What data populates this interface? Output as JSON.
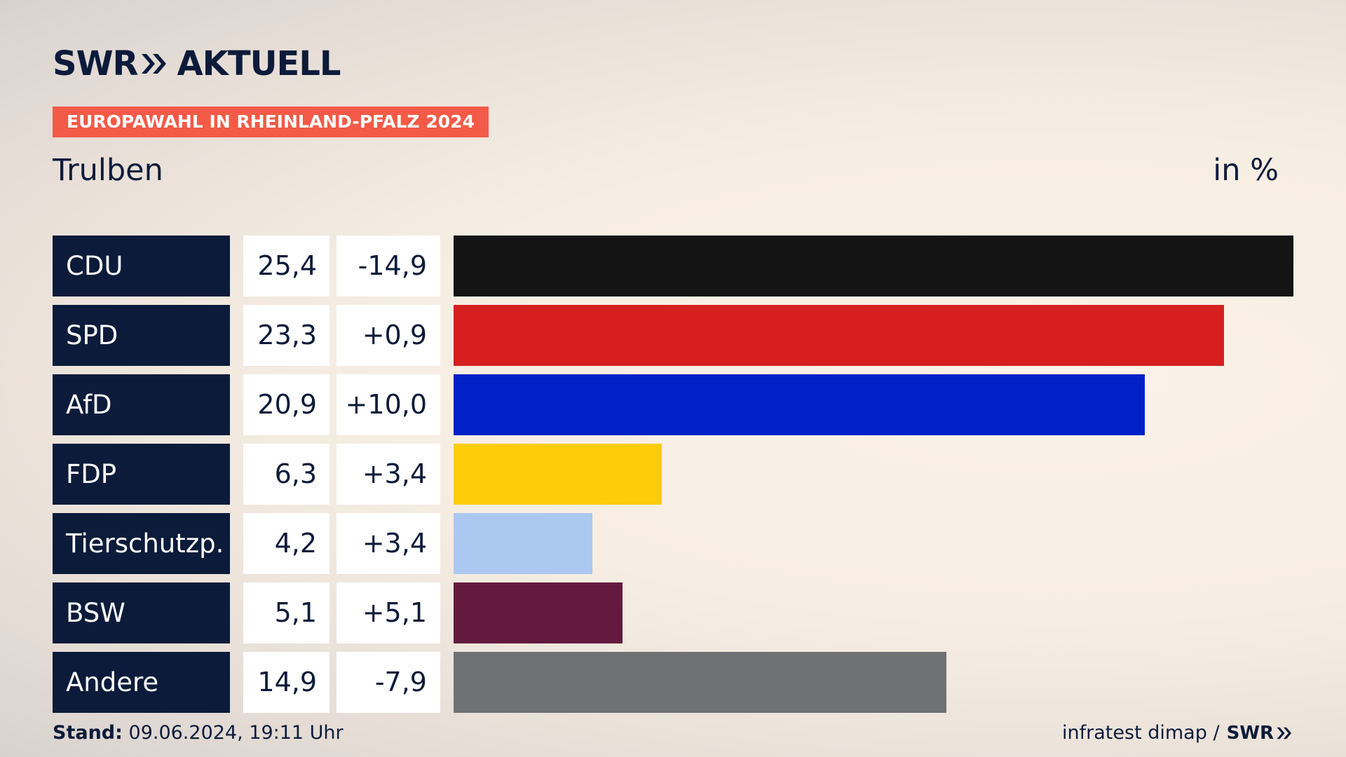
{
  "brand": {
    "logo_left": "SWR",
    "logo_right": "AKTUELL",
    "footer_logo": "SWR"
  },
  "badge": "EUROPAWAHL IN RHEINLAND-PFALZ 2024",
  "region": "Trulben",
  "unit": "in %",
  "footer": {
    "stand_label": "Stand:",
    "stand_value": "09.06.2024, 19:11 Uhr",
    "source": "infratest dimap /"
  },
  "colors": {
    "navy": "#0c1b3a",
    "badge": "#f35a47"
  },
  "chart_data": {
    "type": "bar",
    "orientation": "horizontal",
    "title": "Trulben",
    "unit": "in %",
    "xlim": [
      0,
      25.4
    ],
    "rows": [
      {
        "party": "CDU",
        "value": 25.4,
        "value_label": "25,4",
        "change_label": "-14,9",
        "color": "#141414"
      },
      {
        "party": "SPD",
        "value": 23.3,
        "value_label": "23,3",
        "change_label": "+0,9",
        "color": "#d71f1f"
      },
      {
        "party": "AfD",
        "value": 20.9,
        "value_label": "20,9",
        "change_label": "+10,0",
        "color": "#0021c8"
      },
      {
        "party": "FDP",
        "value": 6.3,
        "value_label": "6,3",
        "change_label": "+3,4",
        "color": "#ffcc0a"
      },
      {
        "party": "Tierschutzp.",
        "value": 4.2,
        "value_label": "4,2",
        "change_label": "+3,4",
        "color": "#abc8f0"
      },
      {
        "party": "BSW",
        "value": 5.1,
        "value_label": "5,1",
        "change_label": "+5,1",
        "color": "#641a3f"
      },
      {
        "party": "Andere",
        "value": 14.9,
        "value_label": "14,9",
        "change_label": "-7,9",
        "color": "#707174"
      }
    ]
  }
}
